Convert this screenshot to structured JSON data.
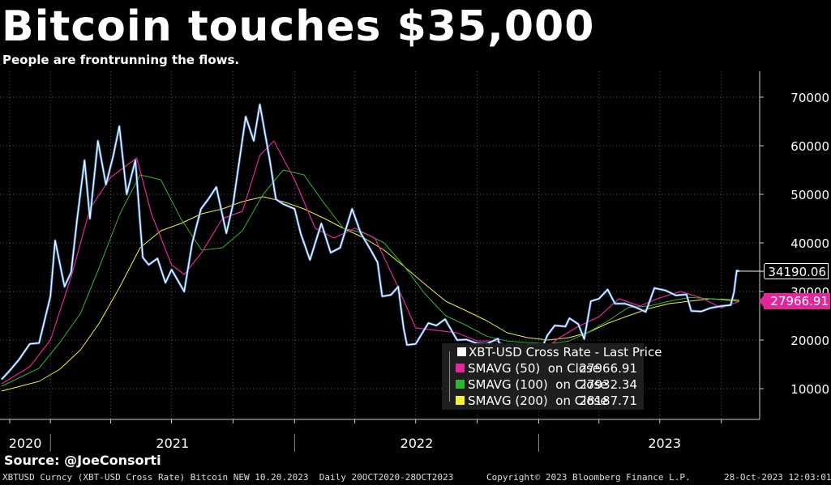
{
  "header": {
    "title": "Bitcoin touches $35,000",
    "subtitle": "People are frontrunning the flows."
  },
  "source": "Source: @JoeConsorti",
  "footer": {
    "left": "XBTUSD Curncy (XBT-USD Cross Rate) Bitcoin NEW 10.20.2023  Daily 20OCT2020-28OCT2023",
    "middle": "Copyright© 2023 Bloomberg Finance L.P.",
    "right": "28-Oct-2023 12:03:01"
  },
  "price_labels": {
    "last": "34190.06",
    "sma50": "27966.91"
  },
  "legend": [
    {
      "name": "XBT-USD Cross Rate - Last Price",
      "value": "",
      "color": "#ffffff"
    },
    {
      "name": "SMAVG (50)  on Close",
      "value": "27966.91",
      "color": "#e4269c"
    },
    {
      "name": "SMAVG (100)  on Close",
      "value": "27932.34",
      "color": "#2fb52f"
    },
    {
      "name": "SMAVG (200)  on Close",
      "value": "28187.71",
      "color": "#f2ef3d"
    }
  ],
  "colors": {
    "background": "#000000",
    "price": "#ffffff",
    "price_edge": "#3a7fd5",
    "sma50": "#e4269c",
    "sma100": "#2fb52f",
    "sma200": "#f2ef3d",
    "grid": "#555555"
  },
  "chart_data": {
    "type": "line",
    "x_start": "2020-10-20",
    "x_end": "2023-10-28",
    "x_tick_labels": [
      "2020",
      "2021",
      "2022",
      "2023"
    ],
    "y_ticks": [
      "70000",
      "60000",
      "50000",
      "40000",
      "30000",
      "20000",
      "10000"
    ],
    "ylim": [
      3500,
      75000
    ],
    "grid": true,
    "legend_position": "bottom-right",
    "series": [
      {
        "name": "XBT-USD Cross Rate - Last Price",
        "x": [
          "2020-10-20",
          "2020-11-01",
          "2020-11-15",
          "2020-12-01",
          "2020-12-15",
          "2021-01-01",
          "2021-01-08",
          "2021-01-22",
          "2021-02-01",
          "2021-02-10",
          "2021-02-21",
          "2021-03-01",
          "2021-03-13",
          "2021-03-25",
          "2021-04-05",
          "2021-04-14",
          "2021-04-25",
          "2021-05-08",
          "2021-05-19",
          "2021-05-28",
          "2021-06-10",
          "2021-06-22",
          "2021-07-01",
          "2021-07-20",
          "2021-08-01",
          "2021-08-14",
          "2021-08-25",
          "2021-09-06",
          "2021-09-21",
          "2021-10-01",
          "2021-10-20",
          "2021-11-01",
          "2021-11-10",
          "2021-11-25",
          "2021-12-04",
          "2021-12-15",
          "2022-01-01",
          "2022-01-10",
          "2022-01-24",
          "2022-02-10",
          "2022-02-24",
          "2022-03-10",
          "2022-03-28",
          "2022-04-10",
          "2022-04-25",
          "2022-05-05",
          "2022-05-12",
          "2022-05-25",
          "2022-06-05",
          "2022-06-13",
          "2022-06-18",
          "2022-07-01",
          "2022-07-20",
          "2022-08-01",
          "2022-08-14",
          "2022-09-01",
          "2022-09-15",
          "2022-10-01",
          "2022-10-15",
          "2022-11-01",
          "2022-11-09",
          "2022-11-25",
          "2022-12-15",
          "2023-01-01",
          "2023-01-14",
          "2023-01-25",
          "2023-02-10",
          "2023-02-16",
          "2023-03-01",
          "2023-03-10",
          "2023-03-20",
          "2023-04-01",
          "2023-04-14",
          "2023-04-25",
          "2023-05-10",
          "2023-05-25",
          "2023-06-10",
          "2023-06-23",
          "2023-07-10",
          "2023-07-25",
          "2023-08-10",
          "2023-08-17",
          "2023-09-01",
          "2023-09-15",
          "2023-10-01",
          "2023-10-15",
          "2023-10-20",
          "2023-10-24",
          "2023-10-28"
        ],
        "values": [
          11900,
          13700,
          16000,
          19200,
          19400,
          29000,
          40500,
          31000,
          34000,
          45000,
          57000,
          45000,
          61000,
          52000,
          58000,
          64000,
          50000,
          57000,
          37000,
          35500,
          36800,
          31800,
          34500,
          30000,
          40000,
          47000,
          49000,
          51500,
          42000,
          48000,
          66000,
          61000,
          68500,
          57000,
          49000,
          48000,
          47000,
          42000,
          36500,
          44000,
          38000,
          39000,
          47000,
          42000,
          38500,
          36000,
          29000,
          29300,
          31000,
          22500,
          19000,
          19200,
          23500,
          23000,
          24300,
          20000,
          20100,
          19300,
          19200,
          20300,
          16000,
          16500,
          17800,
          16700,
          21000,
          23000,
          22800,
          24500,
          23300,
          20200,
          28000,
          28500,
          30400,
          27500,
          27500,
          26800,
          25800,
          30700,
          30200,
          29200,
          29400,
          26000,
          25900,
          26600,
          27000,
          27200,
          29900,
          34300,
          34190
        ]
      },
      {
        "name": "SMAVG (50)  on Close",
        "x": [
          "2020-10-20",
          "2020-12-01",
          "2021-01-01",
          "2021-02-01",
          "2021-03-01",
          "2021-04-01",
          "2021-05-10",
          "2021-06-01",
          "2021-07-01",
          "2021-07-20",
          "2021-08-15",
          "2021-09-15",
          "2021-10-15",
          "2021-11-10",
          "2021-12-01",
          "2022-01-01",
          "2022-02-01",
          "2022-03-01",
          "2022-04-01",
          "2022-05-01",
          "2022-06-01",
          "2022-07-01",
          "2022-08-01",
          "2022-09-01",
          "2022-10-01",
          "2022-11-01",
          "2022-12-01",
          "2023-01-01",
          "2023-02-01",
          "2023-03-01",
          "2023-04-01",
          "2023-05-01",
          "2023-06-01",
          "2023-07-01",
          "2023-08-01",
          "2023-09-01",
          "2023-10-01",
          "2023-10-28"
        ],
        "values": [
          11000,
          14500,
          20000,
          33000,
          47000,
          53500,
          57500,
          46000,
          35500,
          33500,
          38000,
          45000,
          46500,
          58000,
          61000,
          53000,
          43000,
          41000,
          43000,
          41000,
          32000,
          22500,
          22000,
          21500,
          19800,
          19800,
          17200,
          17200,
          20500,
          22800,
          24800,
          28500,
          27000,
          28700,
          30000,
          28700,
          26600,
          27967
        ]
      },
      {
        "name": "SMAVG (100)  on Close",
        "x": [
          "2020-10-20",
          "2020-12-15",
          "2021-01-15",
          "2021-02-15",
          "2021-03-15",
          "2021-04-15",
          "2021-05-15",
          "2021-06-15",
          "2021-07-15",
          "2021-08-15",
          "2021-09-15",
          "2021-10-15",
          "2021-11-15",
          "2021-12-15",
          "2022-01-15",
          "2022-02-15",
          "2022-03-15",
          "2022-04-15",
          "2022-05-15",
          "2022-06-15",
          "2022-07-15",
          "2022-08-15",
          "2022-09-15",
          "2022-10-15",
          "2022-11-15",
          "2022-12-15",
          "2023-01-15",
          "2023-02-15",
          "2023-03-15",
          "2023-04-15",
          "2023-05-15",
          "2023-06-15",
          "2023-07-15",
          "2023-08-15",
          "2023-09-15",
          "2023-10-28"
        ],
        "values": [
          10500,
          14200,
          19500,
          25500,
          35000,
          46000,
          54000,
          53000,
          45000,
          38500,
          39000,
          42500,
          50000,
          55000,
          54000,
          48000,
          43000,
          42000,
          40000,
          35000,
          29500,
          25000,
          23000,
          20800,
          19800,
          19500,
          19200,
          19800,
          21500,
          24000,
          26700,
          27000,
          28000,
          28800,
          28500,
          27932
        ]
      },
      {
        "name": "SMAVG (200)  on Close",
        "x": [
          "2020-10-20",
          "2020-12-15",
          "2021-01-15",
          "2021-02-15",
          "2021-03-15",
          "2021-04-15",
          "2021-05-15",
          "2021-06-15",
          "2021-07-15",
          "2021-08-15",
          "2021-09-15",
          "2021-10-15",
          "2021-11-15",
          "2021-12-15",
          "2022-01-15",
          "2022-02-15",
          "2022-03-15",
          "2022-04-15",
          "2022-05-15",
          "2022-06-15",
          "2022-07-15",
          "2022-08-15",
          "2022-09-15",
          "2022-10-15",
          "2022-11-15",
          "2022-12-15",
          "2023-01-15",
          "2023-02-15",
          "2023-03-15",
          "2023-04-15",
          "2023-05-15",
          "2023-06-15",
          "2023-07-15",
          "2023-08-15",
          "2023-09-15",
          "2023-10-28"
        ],
        "values": [
          9500,
          11500,
          14000,
          18000,
          23500,
          31000,
          39000,
          42500,
          44000,
          46000,
          47000,
          48500,
          49500,
          48500,
          47000,
          45000,
          43000,
          41000,
          38500,
          35000,
          31500,
          28000,
          26000,
          24000,
          21500,
          20500,
          20000,
          20500,
          21500,
          23500,
          25000,
          26500,
          27500,
          28000,
          28500,
          28188
        ]
      }
    ]
  }
}
